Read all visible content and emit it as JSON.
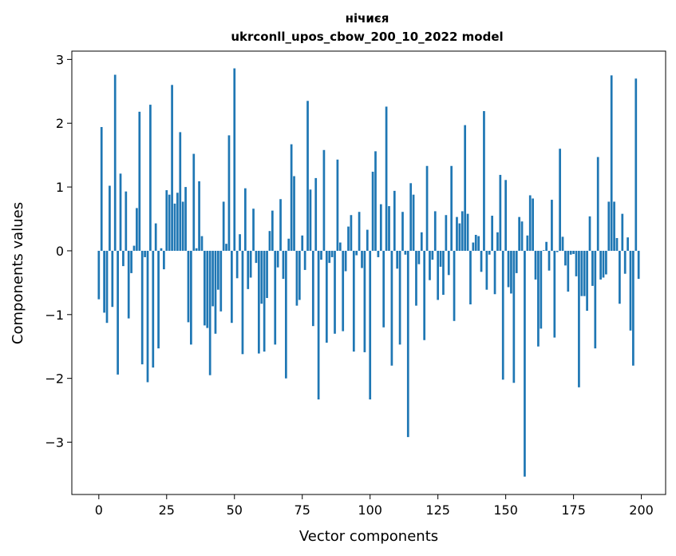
{
  "chart_data": {
    "type": "bar",
    "title_line1": "нічиєя",
    "title_line2": "ukrconll_upos_cbow_200_10_2022 model",
    "xlabel": "Vector components",
    "ylabel": "Components values",
    "xlim": [
      -9.95,
      208.95
    ],
    "ylim": [
      -3.82,
      3.13
    ],
    "xticks": [
      0,
      25,
      50,
      75,
      100,
      125,
      150,
      175,
      200
    ],
    "yticks": [
      -3,
      -2,
      -1,
      0,
      1,
      2,
      3
    ],
    "ytick_labels": [
      "−3",
      "−2",
      "−1",
      "0",
      "1",
      "2",
      "3"
    ],
    "grid": false,
    "bar_color": "#1f77b4",
    "x": [
      0,
      1,
      2,
      3,
      4,
      5,
      6,
      7,
      8,
      9,
      10,
      11,
      12,
      13,
      14,
      15,
      16,
      17,
      18,
      19,
      20,
      21,
      22,
      23,
      24,
      25,
      26,
      27,
      28,
      29,
      30,
      31,
      32,
      33,
      34,
      35,
      36,
      37,
      38,
      39,
      40,
      41,
      42,
      43,
      44,
      45,
      46,
      47,
      48,
      49,
      50,
      51,
      52,
      53,
      54,
      55,
      56,
      57,
      58,
      59,
      60,
      61,
      62,
      63,
      64,
      65,
      66,
      67,
      68,
      69,
      70,
      71,
      72,
      73,
      74,
      75,
      76,
      77,
      78,
      79,
      80,
      81,
      82,
      83,
      84,
      85,
      86,
      87,
      88,
      89,
      90,
      91,
      92,
      93,
      94,
      95,
      96,
      97,
      98,
      99,
      100,
      101,
      102,
      103,
      104,
      105,
      106,
      107,
      108,
      109,
      110,
      111,
      112,
      113,
      114,
      115,
      116,
      117,
      118,
      119,
      120,
      121,
      122,
      123,
      124,
      125,
      126,
      127,
      128,
      129,
      130,
      131,
      132,
      133,
      134,
      135,
      136,
      137,
      138,
      139,
      140,
      141,
      142,
      143,
      144,
      145,
      146,
      147,
      148,
      149,
      150,
      151,
      152,
      153,
      154,
      155,
      156,
      157,
      158,
      159,
      160,
      161,
      162,
      163,
      164,
      165,
      166,
      167,
      168,
      169,
      170,
      171,
      172,
      173,
      174,
      175,
      176,
      177,
      178,
      179,
      180,
      181,
      182,
      183,
      184,
      185,
      186,
      187,
      188,
      189,
      190,
      191,
      192,
      193,
      194,
      195,
      196,
      197,
      198,
      199
    ],
    "values": [
      -0.76,
      1.94,
      -0.97,
      -1.13,
      1.02,
      -0.88,
      2.76,
      -1.94,
      1.21,
      -0.24,
      0.93,
      -1.06,
      -0.35,
      0.08,
      0.67,
      2.18,
      -1.78,
      -0.1,
      -2.06,
      2.29,
      -1.83,
      0.43,
      -1.53,
      0.04,
      -0.29,
      0.95,
      0.88,
      2.6,
      0.74,
      0.91,
      1.86,
      0.77,
      1.0,
      -1.12,
      -1.47,
      1.52,
      0.04,
      1.09,
      0.23,
      -1.17,
      -1.21,
      -1.95,
      -0.87,
      -1.3,
      -0.61,
      -0.95,
      0.77,
      0.11,
      1.81,
      -1.13,
      2.86,
      -0.43,
      0.26,
      -1.62,
      0.98,
      -0.6,
      -0.42,
      0.66,
      -0.19,
      -1.61,
      -0.83,
      -1.58,
      -0.74,
      0.31,
      0.63,
      -1.47,
      -0.26,
      0.81,
      -0.44,
      -2.0,
      0.19,
      1.67,
      1.17,
      -0.86,
      -0.77,
      0.24,
      -0.3,
      2.35,
      0.96,
      -1.18,
      1.14,
      -2.33,
      -0.14,
      1.58,
      -1.44,
      -0.19,
      -0.1,
      -1.3,
      1.43,
      0.13,
      -1.26,
      -0.32,
      0.38,
      0.56,
      -1.58,
      -0.07,
      0.61,
      -0.27,
      -1.59,
      0.33,
      -2.33,
      1.24,
      1.56,
      -0.1,
      0.73,
      -1.2,
      2.26,
      0.7,
      -1.8,
      0.94,
      -0.28,
      -1.47,
      0.61,
      -0.06,
      -2.92,
      1.06,
      0.88,
      -0.86,
      -0.21,
      0.29,
      -1.4,
      1.33,
      -0.46,
      -0.14,
      0.62,
      -0.77,
      -0.25,
      -0.69,
      0.56,
      -0.38,
      1.33,
      -1.1,
      0.53,
      0.43,
      0.62,
      1.97,
      0.58,
      -0.84,
      0.13,
      0.25,
      0.23,
      -0.33,
      2.19,
      -0.61,
      -0.06,
      0.55,
      -0.68,
      0.29,
      1.19,
      -2.02,
      1.11,
      -0.57,
      -0.67,
      -2.07,
      -0.35,
      0.53,
      0.46,
      -3.54,
      0.24,
      0.87,
      0.82,
      -0.45,
      -1.5,
      -1.22,
      0.01,
      0.14,
      -0.31,
      0.8,
      -1.36,
      -0.02,
      1.6,
      0.22,
      -0.23,
      -0.64,
      -0.06,
      -0.05,
      -0.4,
      -2.14,
      -0.71,
      -0.71,
      -0.94,
      0.54,
      -0.55,
      -1.53,
      1.47,
      -0.45,
      -0.42,
      -0.37,
      0.77,
      2.75,
      0.77,
      0.2,
      -0.83,
      0.58,
      -0.36,
      0.21,
      -1.25,
      -1.8,
      2.7,
      -0.44
    ]
  }
}
